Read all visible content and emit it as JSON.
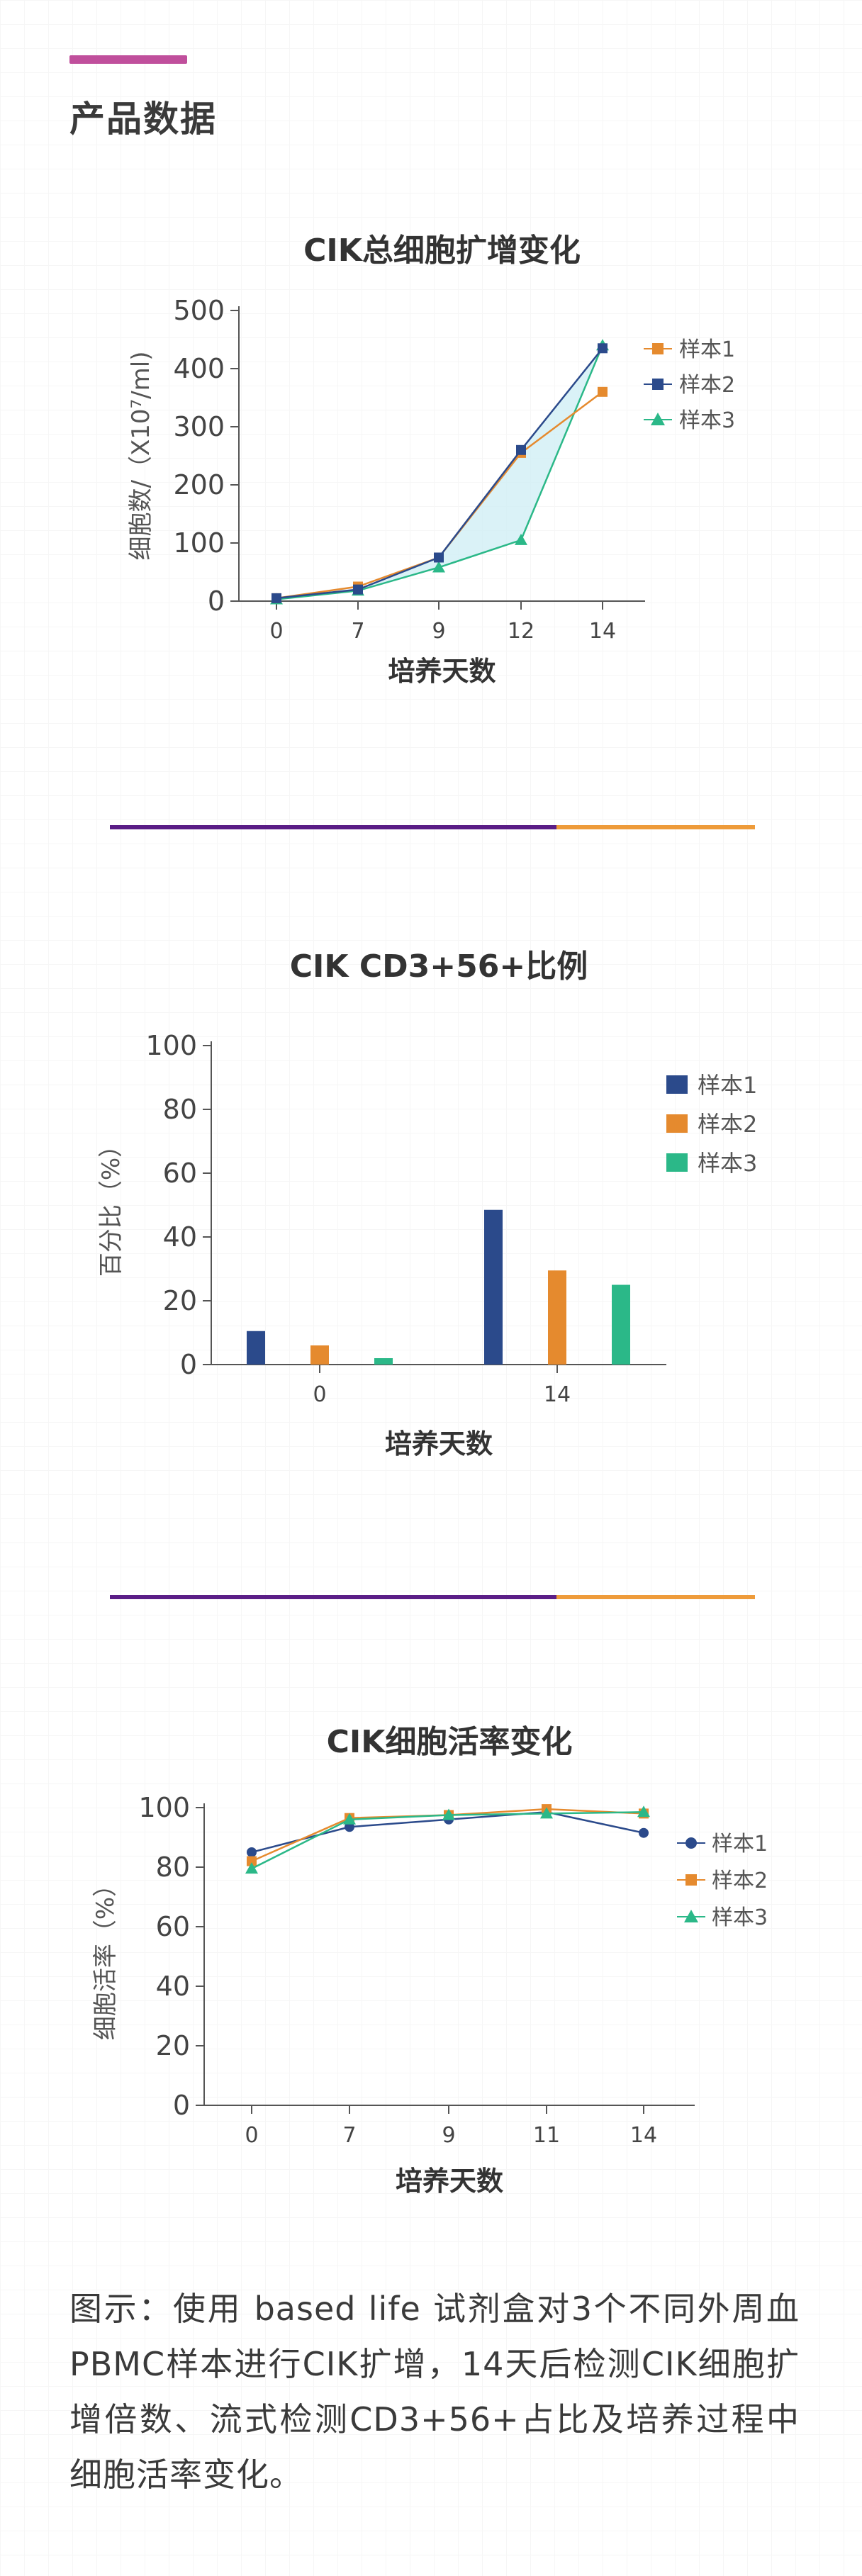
{
  "section_title": "产品数据",
  "caption": "图示：使用 based life 试剂盒对3个不同外周血PBMC样本进行CIK扩增，14天后检测CIK细胞扩增倍数、流式检测CD3+56+占比及培养过程中细胞活率变化。",
  "colors": {
    "accent": "#c04f9c",
    "divider_purple": "#5a1d86",
    "divider_orange": "#ee9b3a",
    "series_blue": "#2b4a8b",
    "series_orange": "#e58a2e",
    "series_green": "#2bb888",
    "fill_cyan": "#cdeef4"
  },
  "chart_data": [
    {
      "type": "line",
      "title": "CIK总细胞扩增变化",
      "xlabel": "培养天数",
      "ylabel": "细胞数/（X10⁷/ml)",
      "x": [
        "0",
        "7",
        "9",
        "12",
        "14"
      ],
      "ylim": [
        0,
        500
      ],
      "yticks": [
        "0",
        "100",
        "200",
        "300",
        "400",
        "500"
      ],
      "legend_position": "right",
      "series": [
        {
          "name": "样本1",
          "marker": "square",
          "color": "#e58a2e",
          "values": [
            5,
            25,
            75,
            255,
            360
          ]
        },
        {
          "name": "样本2",
          "marker": "square",
          "color": "#2b4a8b",
          "values": [
            5,
            20,
            75,
            260,
            435
          ]
        },
        {
          "name": "样本3",
          "marker": "triangle",
          "color": "#2bb888",
          "values": [
            3,
            18,
            58,
            105,
            440
          ]
        }
      ]
    },
    {
      "type": "bar",
      "title": "CIK CD3+56+比例",
      "xlabel": "培养天数",
      "ylabel": "百分比（%）",
      "categories": [
        "0",
        "14"
      ],
      "ylim": [
        0,
        100
      ],
      "yticks": [
        "0",
        "20",
        "40",
        "60",
        "80",
        "100"
      ],
      "legend_position": "top-right",
      "series": [
        {
          "name": "样本1",
          "color": "#2b4a8b",
          "values": [
            10.5,
            48.5
          ]
        },
        {
          "name": "样本2",
          "color": "#e58a2e",
          "values": [
            6,
            29.5
          ]
        },
        {
          "name": "样本3",
          "color": "#2bb888",
          "values": [
            2,
            25
          ]
        }
      ]
    },
    {
      "type": "line",
      "title": "CIK细胞活率变化",
      "xlabel": "培养天数",
      "ylabel": "细胞活率（%）",
      "x": [
        "0",
        "7",
        "9",
        "11",
        "14"
      ],
      "ylim": [
        0,
        100
      ],
      "yticks": [
        "0",
        "20",
        "40",
        "60",
        "80",
        "100"
      ],
      "legend_position": "right",
      "series": [
        {
          "name": "样本1",
          "marker": "circle",
          "color": "#2b4a8b",
          "values": [
            85,
            93.5,
            96,
            98.5,
            91.5
          ]
        },
        {
          "name": "样本2",
          "marker": "square",
          "color": "#e58a2e",
          "values": [
            82,
            96.5,
            97.5,
            99.5,
            98
          ]
        },
        {
          "name": "样本3",
          "marker": "triangle",
          "color": "#2bb888",
          "values": [
            79.5,
            96,
            97.5,
            98,
            98.5
          ]
        }
      ]
    }
  ]
}
